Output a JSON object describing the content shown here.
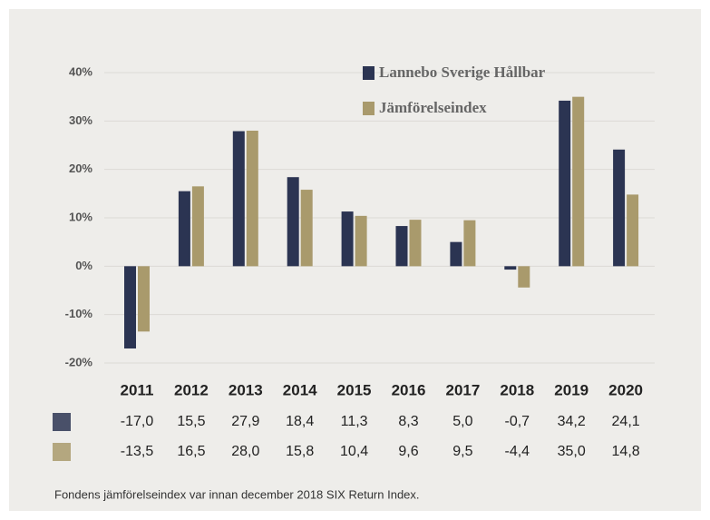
{
  "chart_data": {
    "type": "bar",
    "categories": [
      "2011",
      "2012",
      "2013",
      "2014",
      "2015",
      "2016",
      "2017",
      "2018",
      "2019",
      "2020"
    ],
    "series": [
      {
        "name": "Lannebo Sverige Hållbar",
        "color": "#2b3452",
        "values": [
          -17.0,
          15.5,
          27.9,
          18.4,
          11.3,
          8.3,
          5.0,
          -0.7,
          34.2,
          24.1
        ],
        "value_labels": [
          "-17,0",
          "15,5",
          "27,9",
          "18,4",
          "11,3",
          "8,3",
          "5,0",
          "-0,7",
          "34,2",
          "24,1"
        ]
      },
      {
        "name": "Jämförelseindex",
        "color": "#a99a6c",
        "values": [
          -13.5,
          16.5,
          28.0,
          15.8,
          10.4,
          9.6,
          9.5,
          -4.4,
          35.0,
          14.8
        ],
        "value_labels": [
          "-13,5",
          "16,5",
          "28,0",
          "15,8",
          "10,4",
          "9,6",
          "9,5",
          "-4,4",
          "35,0",
          "14,8"
        ]
      }
    ],
    "ylim": [
      -20,
      40
    ],
    "yticks": [
      {
        "value": -20,
        "label": "-20%"
      },
      {
        "value": -10,
        "label": "-10%"
      },
      {
        "value": 0,
        "label": "0%"
      },
      {
        "value": 10,
        "label": "10%"
      },
      {
        "value": 20,
        "label": "20%"
      },
      {
        "value": 30,
        "label": "30%"
      },
      {
        "value": 40,
        "label": "40%"
      }
    ],
    "grid": true,
    "legend": "top-right",
    "footnote": "Fondens jämförelseindex var innan december 2018  SIX Return Index."
  }
}
